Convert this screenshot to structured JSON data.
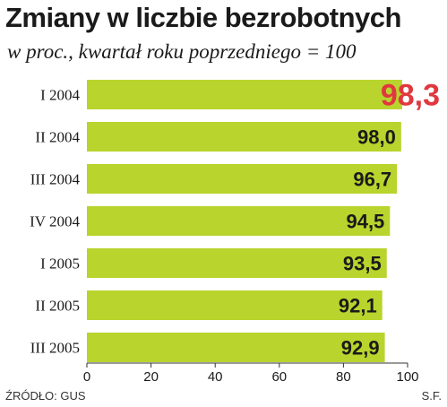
{
  "header": {
    "title": "Zmiany w liczbie bezrobotnych",
    "subtitle": "w proc., kwartał roku poprzedniego = 100"
  },
  "footer": {
    "source": "ŹRÓDŁO: GUS",
    "credit": "S.F."
  },
  "colors": {
    "bar": "#b8d42d",
    "highlight_label": "#e0383e",
    "label": "#1a1a1a",
    "axis": "#333333"
  },
  "chart_data": {
    "type": "bar",
    "orientation": "horizontal",
    "title": "Zmiany w liczbie bezrobotnych",
    "subtitle": "w proc., kwartał roku poprzedniego = 100",
    "categories": [
      "I 2004",
      "II 2004",
      "III 2004",
      "IV 2004",
      "I 2005",
      "II 2005",
      "III 2005"
    ],
    "values": [
      98.3,
      98.0,
      96.7,
      94.5,
      93.5,
      92.1,
      92.9
    ],
    "value_labels": [
      "98,3",
      "98,0",
      "96,7",
      "94,5",
      "93,5",
      "92,1",
      "92,9"
    ],
    "highlight_index": 0,
    "xlim": [
      0,
      100
    ],
    "xticks": [
      0,
      20,
      40,
      60,
      80,
      100
    ],
    "grid": false,
    "legend": "none"
  }
}
